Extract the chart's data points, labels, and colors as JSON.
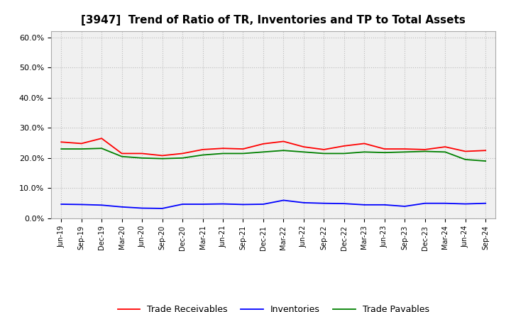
{
  "title": "[3947]  Trend of Ratio of TR, Inventories and TP to Total Assets",
  "x_labels": [
    "Jun-19",
    "Sep-19",
    "Dec-19",
    "Mar-20",
    "Jun-20",
    "Sep-20",
    "Dec-20",
    "Mar-21",
    "Jun-21",
    "Sep-21",
    "Dec-21",
    "Mar-22",
    "Jun-22",
    "Sep-22",
    "Dec-22",
    "Mar-23",
    "Jun-23",
    "Sep-23",
    "Dec-23",
    "Mar-24",
    "Jun-24",
    "Sep-24"
  ],
  "trade_receivables": [
    0.253,
    0.248,
    0.265,
    0.215,
    0.215,
    0.208,
    0.215,
    0.228,
    0.232,
    0.23,
    0.247,
    0.255,
    0.237,
    0.228,
    0.24,
    0.248,
    0.23,
    0.23,
    0.228,
    0.237,
    0.222,
    0.225
  ],
  "inventories": [
    0.047,
    0.046,
    0.044,
    0.038,
    0.034,
    0.033,
    0.047,
    0.047,
    0.048,
    0.046,
    0.047,
    0.06,
    0.052,
    0.05,
    0.049,
    0.045,
    0.045,
    0.04,
    0.05,
    0.05,
    0.048,
    0.05
  ],
  "trade_payables": [
    0.23,
    0.23,
    0.232,
    0.205,
    0.2,
    0.198,
    0.2,
    0.21,
    0.215,
    0.215,
    0.22,
    0.225,
    0.22,
    0.215,
    0.215,
    0.22,
    0.218,
    0.22,
    0.222,
    0.22,
    0.195,
    0.19
  ],
  "ylim": [
    0.0,
    0.62
  ],
  "yticks": [
    0.0,
    0.1,
    0.2,
    0.3,
    0.4,
    0.5,
    0.6
  ],
  "tr_color": "#ff0000",
  "inv_color": "#0000ff",
  "tp_color": "#008000",
  "background_color": "#ffffff",
  "plot_bg_color": "#f0f0f0",
  "grid_color": "#bbbbbb",
  "title_fontsize": 11,
  "legend_labels": [
    "Trade Receivables",
    "Inventories",
    "Trade Payables"
  ]
}
